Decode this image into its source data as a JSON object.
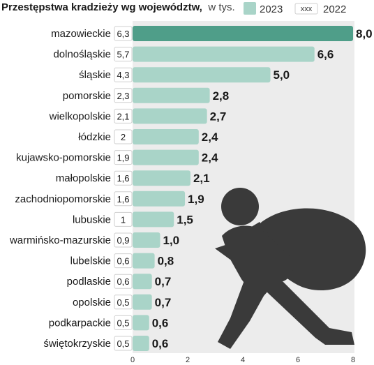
{
  "chart_data": {
    "type": "bar",
    "orientation": "horizontal",
    "title": "Przestępstwa kradzieży wg województw,",
    "unit": "w tys.",
    "legend": {
      "current_label": "2023",
      "marker_text": "xxx",
      "previous_label": "2022",
      "placement": "top-right"
    },
    "categories": [
      "mazowieckie",
      "dolnośląskie",
      "śląskie",
      "pomorskie",
      "wielkopolskie",
      "łódzkie",
      "kujawsko-pomorskie",
      "małopolskie",
      "zachodniopomorskie",
      "lubuskie",
      "warmińsko-mazurskie",
      "lubelskie",
      "podlaskie",
      "opolskie",
      "podkarpackie",
      "świętokrzyskie"
    ],
    "series": [
      {
        "name": "2023",
        "values": [
          8.0,
          6.6,
          5.0,
          2.8,
          2.7,
          2.4,
          2.4,
          2.1,
          1.9,
          1.5,
          1.0,
          0.8,
          0.7,
          0.7,
          0.6,
          0.6
        ]
      },
      {
        "name": "2022",
        "values": [
          6.3,
          5.7,
          4.3,
          2.3,
          2.1,
          2,
          1.9,
          1.6,
          1.6,
          1,
          0.9,
          0.6,
          0.6,
          0.5,
          0.5,
          0.5
        ]
      }
    ],
    "value_labels": [
      "8,0",
      "6,6",
      "5,0",
      "2,8",
      "2,7",
      "2,4",
      "2,4",
      "2,1",
      "1,9",
      "1,5",
      "1,0",
      "0,8",
      "0,7",
      "0,7",
      "0,6",
      "0,6"
    ],
    "previous_labels": [
      "6,3",
      "5,7",
      "4,3",
      "2,3",
      "2,1",
      "2",
      "1,9",
      "1,6",
      "1,6",
      "1",
      "0,9",
      "0,6",
      "0,6",
      "0,5",
      "0,5",
      "0,5"
    ],
    "xlim": [
      0,
      8
    ],
    "xticks": [
      "0",
      "2",
      "4",
      "6",
      "8"
    ],
    "grid": false,
    "colors": {
      "highlight_bar": "#4f9e89",
      "bar": "#a9d4c8",
      "legend_swatch": "#a9d4c8",
      "plot_background": "#ececec",
      "figure": "#3a3a3a"
    },
    "illustration": "thief-with-sack-icon"
  }
}
